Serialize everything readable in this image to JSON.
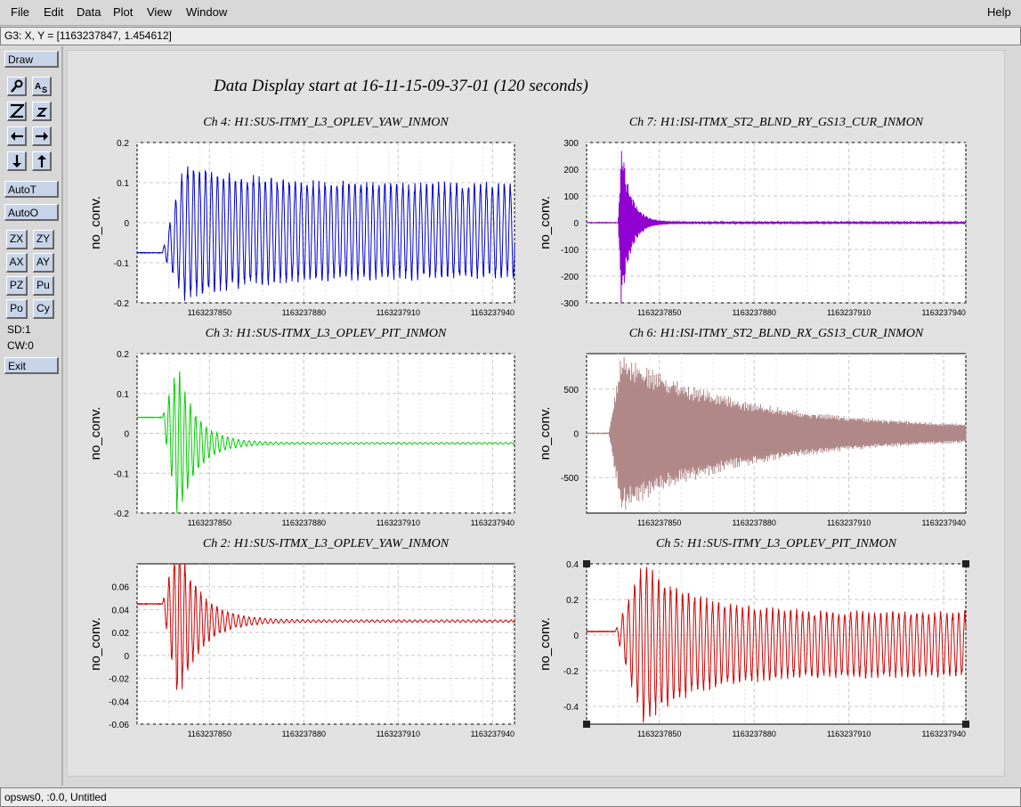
{
  "menu": {
    "file": "File",
    "edit": "Edit",
    "data": "Data",
    "plot": "Plot",
    "view": "View",
    "window": "Window",
    "help": "Help"
  },
  "coord_readout": "G3: X, Y = [1163237847, 1.454612]",
  "toolbar": {
    "draw": "Draw",
    "autot": "AutoT",
    "autoo": "AutoO",
    "zx": "ZX",
    "zy": "ZY",
    "ax": "AX",
    "ay": "AY",
    "pz": "PZ",
    "pu": "Pu",
    "po": "Po",
    "cy": "Cy",
    "sd": "SD:1",
    "cw": "CW:0",
    "exit": "Exit",
    "icons": [
      "magnify-icon",
      "autoscale-icon",
      "zoom-in-icon",
      "zoom-out-icon",
      "arrow-left-icon",
      "arrow-right-icon",
      "arrow-down-icon",
      "arrow-up-icon"
    ]
  },
  "status_text": "opsws0, :0.0, Untitled",
  "chart_data": {
    "type": "line",
    "title": "Data Display start at 16-11-15-09-37-01 (120 seconds)",
    "panels": [
      {
        "title": "Ch 4: H1:SUS-ITMY_L3_OPLEV_YAW_INMON",
        "ylabel": "no_conv.",
        "color": "#0000d0",
        "xlim": [
          1163237827,
          1163237947
        ],
        "xticks": [
          "1163237850",
          "1163237880",
          "1163237910",
          "1163237940"
        ],
        "yticks": [
          "0.2",
          "0.1",
          "0",
          "-0.1",
          "-0.2"
        ],
        "ylim": [
          -0.2,
          0.2
        ],
        "signal": {
          "pre": -0.075,
          "t0": 1163237835,
          "rise": 1163237842,
          "peak": 0.16,
          "steady": 0.11,
          "offset": -0.02,
          "period": 1.9,
          "decay": 20
        }
      },
      {
        "title": "Ch 7: H1:ISI-ITMX_ST2_BLND_RY_GS13_CUR_INMON",
        "ylabel": "no_conv.",
        "color": "#9000d0",
        "xlim": [
          1163237827,
          1163237947
        ],
        "xticks": [
          "1163237850",
          "1163237880",
          "1163237910",
          "1163237940"
        ],
        "yticks": [
          "300",
          "200",
          "100",
          "0",
          "-100",
          "-200",
          "-300"
        ],
        "ylim": [
          -300,
          300
        ],
        "signal": {
          "pre": 0,
          "t0": 1163237837,
          "rise": 1163237838,
          "peak": 290,
          "steady": 3,
          "offset": 0,
          "period": 0.25,
          "decay": 3
        }
      },
      {
        "title": "Ch 3: H1:SUS-ITMX_L3_OPLEV_PIT_INMON",
        "ylabel": "no_conv.",
        "color": "#00d000",
        "xlim": [
          1163237827,
          1163237947
        ],
        "xticks": [
          "1163237850",
          "1163237880",
          "1163237910",
          "1163237940"
        ],
        "yticks": [
          "0.2",
          "0.1",
          "0",
          "-0.1",
          "-0.2"
        ],
        "ylim": [
          -0.2,
          0.2
        ],
        "signal": {
          "pre": 0.04,
          "t0": 1163237835,
          "rise": 1163237840,
          "peak": 0.18,
          "steady": 0.002,
          "offset": -0.025,
          "period": 1.7,
          "decay": 6
        }
      },
      {
        "title": "Ch 6: H1:ISI-ITMY_ST2_BLND_RX_GS13_CUR_INMON",
        "ylabel": "no_conv.",
        "color": "#b08888",
        "xlim": [
          1163237827,
          1163237947
        ],
        "xticks": [
          "1163237850",
          "1163237880",
          "1163237910",
          "1163237940"
        ],
        "yticks": [
          "500",
          "0",
          "-500"
        ],
        "ylim": [
          -900,
          900
        ],
        "signal": {
          "pre": 0,
          "t0": 1163237834,
          "rise": 1163237838,
          "peak": 820,
          "steady": 50,
          "offset": 0,
          "period": 0.3,
          "decay": 40
        }
      },
      {
        "title": "Ch 2: H1:SUS-ITMX_L3_OPLEV_YAW_INMON",
        "ylabel": "no_conv.",
        "color": "#d00000",
        "xlim": [
          1163237827,
          1163237947
        ],
        "xticks": [
          "1163237850",
          "1163237880",
          "1163237910",
          "1163237940"
        ],
        "yticks": [
          "0.06",
          "0.04",
          "0.02",
          "0",
          "-0.02",
          "-0.04",
          "-0.06"
        ],
        "ylim": [
          -0.06,
          0.08
        ],
        "signal": {
          "pre": 0.045,
          "t0": 1163237835,
          "rise": 1163237840,
          "peak": 0.065,
          "steady": 0.001,
          "offset": 0.03,
          "period": 1.7,
          "decay": 7
        }
      },
      {
        "title": "Ch 5: H1:SUS-ITMY_L3_OPLEV_PIT_INMON",
        "ylabel": "no_conv.",
        "color": "#d00000",
        "xlim": [
          1163237827,
          1163237947
        ],
        "xticks": [
          "1163237850",
          "1163237880",
          "1163237910",
          "1163237940"
        ],
        "yticks": [
          "0.4",
          "0.2",
          "0",
          "-0.2",
          "-0.4"
        ],
        "ylim": [
          -0.5,
          0.4
        ],
        "signal": {
          "pre": 0.02,
          "t0": 1163237836,
          "rise": 1163237845,
          "peak": 0.42,
          "steady": 0.17,
          "offset": -0.05,
          "period": 1.9,
          "decay": 15
        }
      }
    ]
  }
}
